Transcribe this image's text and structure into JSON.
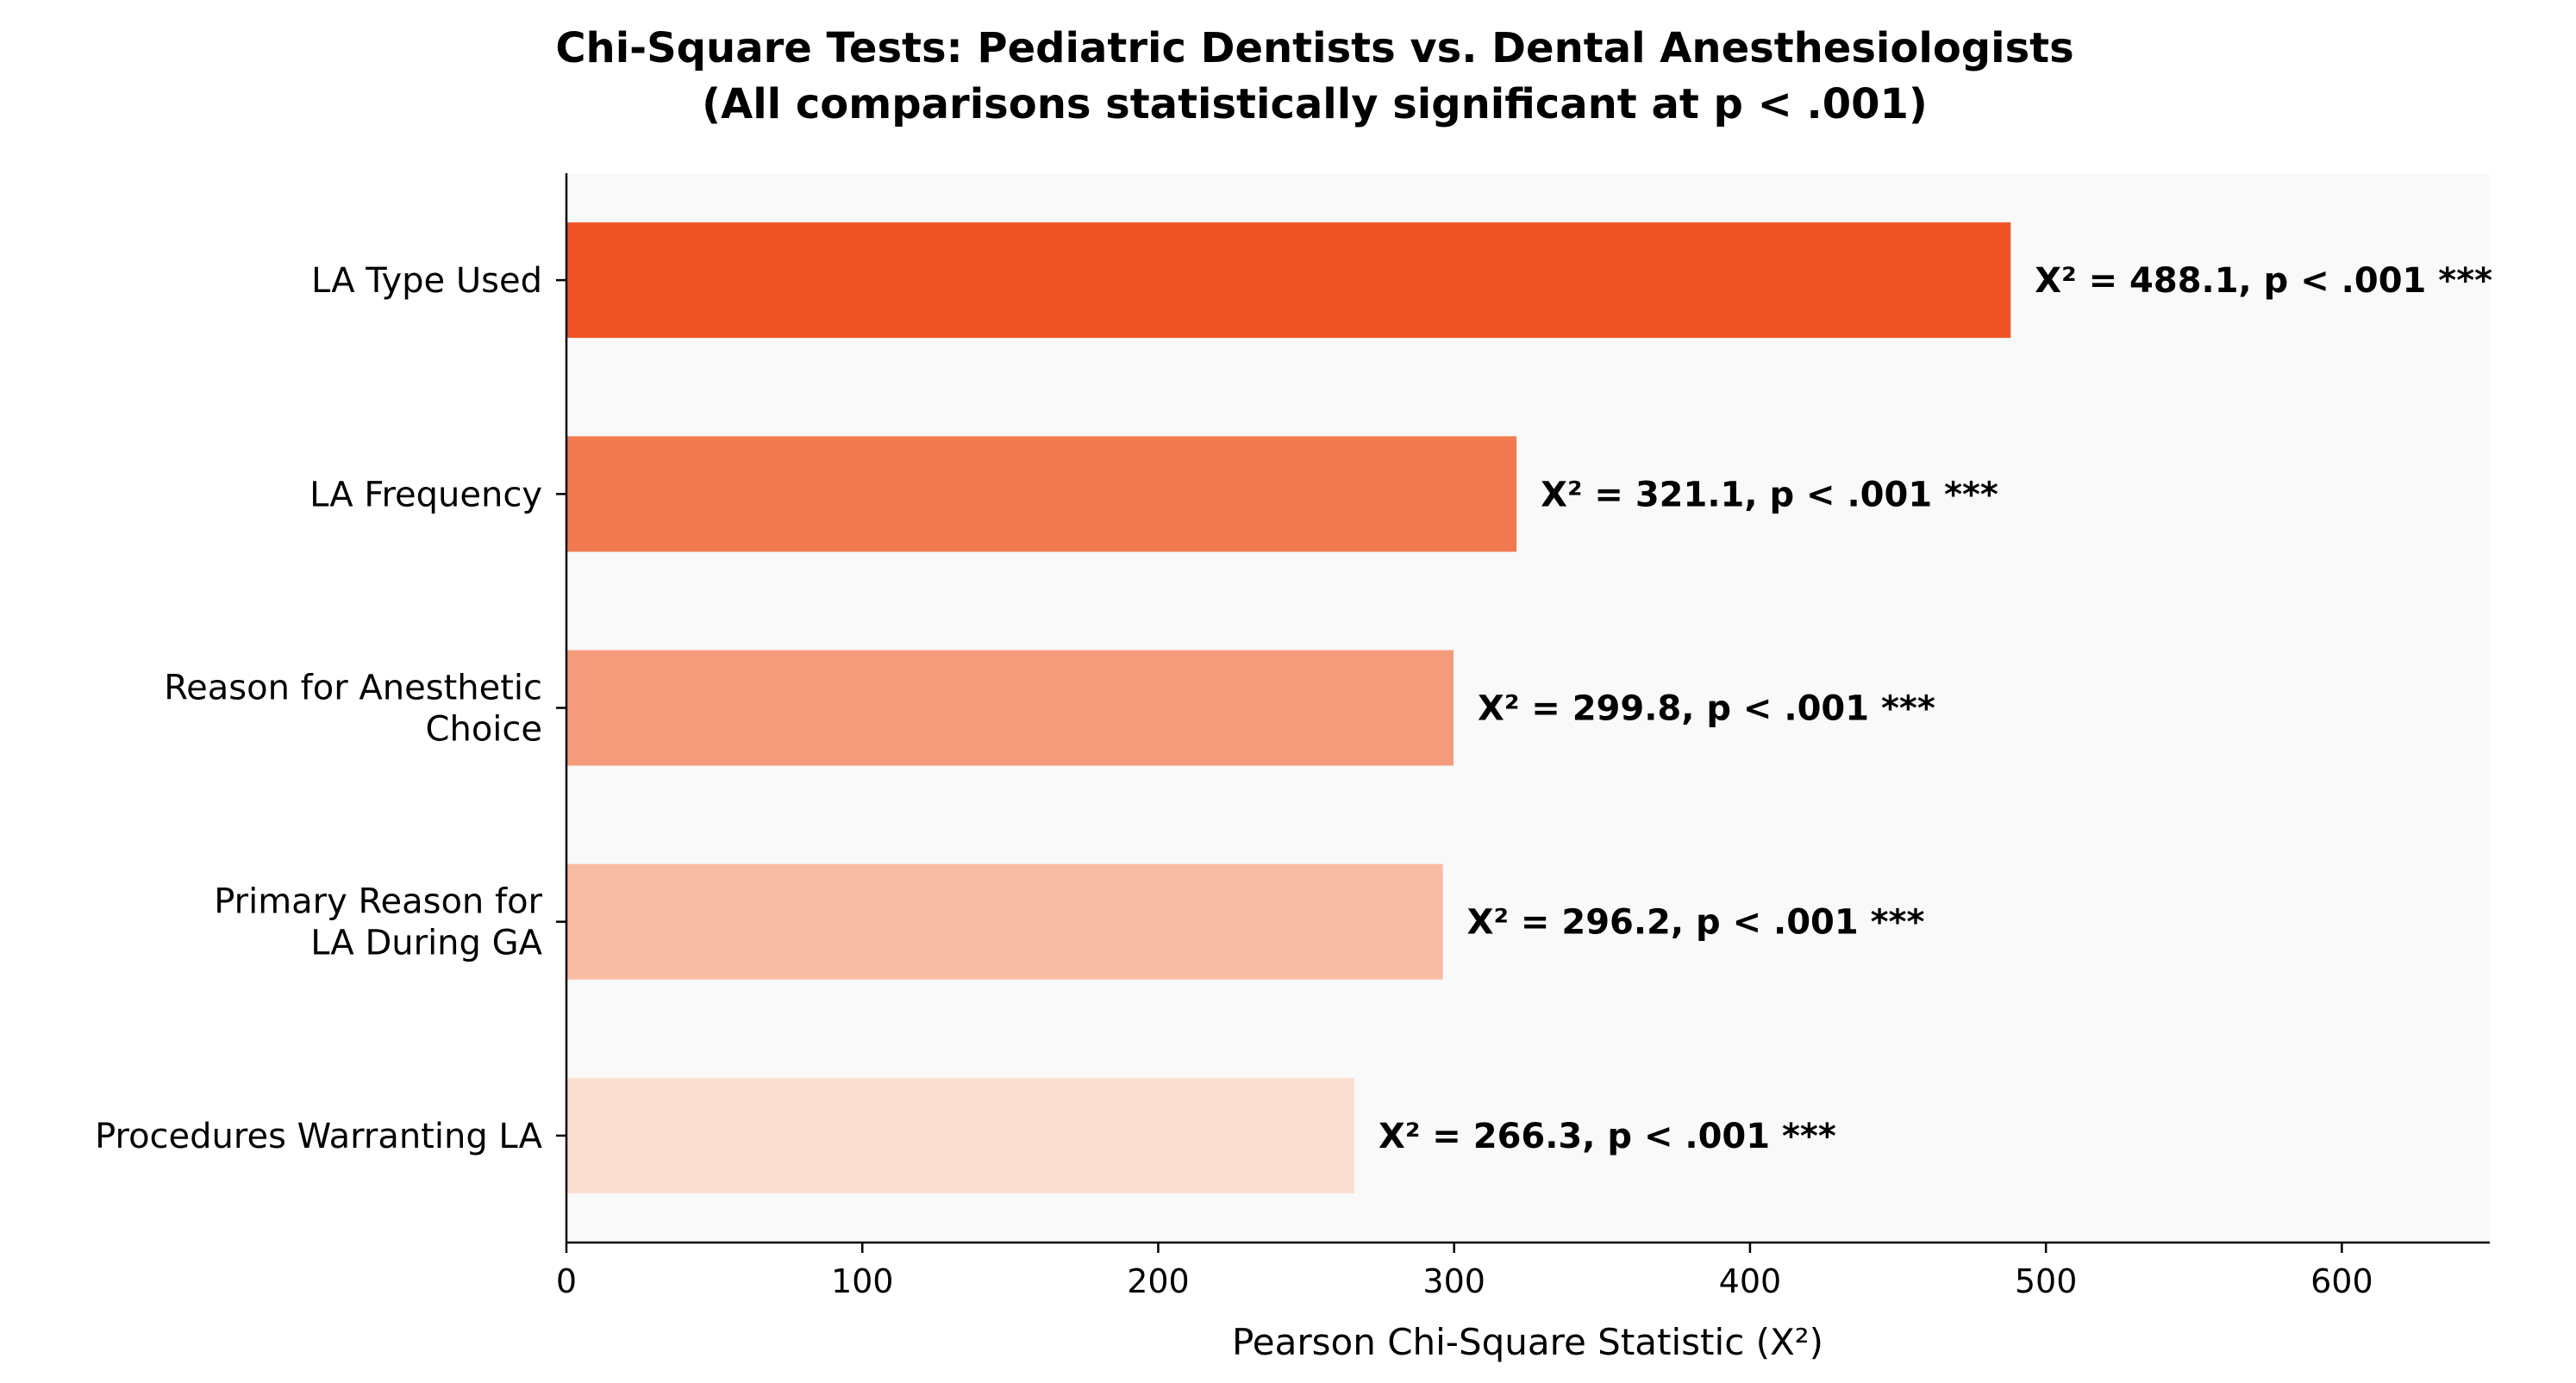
{
  "chart_data": {
    "type": "bar",
    "orientation": "horizontal",
    "title": "Chi-Square Tests: Pediatric Dentists vs. Dental Anesthesiologists",
    "subtitle": "(All comparisons statistically significant at p < .001)",
    "xlabel": "Pearson Chi-Square Statistic (X²)",
    "ylabel": "",
    "xlim": [
      0,
      650
    ],
    "xticks": [
      0,
      100,
      200,
      300,
      400,
      500,
      600
    ],
    "grid": false,
    "plot_background": "#f9f9f9",
    "categories": [
      [
        "LA Type Used"
      ],
      [
        "LA Frequency"
      ],
      [
        "Reason for Anesthetic",
        "Choice"
      ],
      [
        "Primary Reason for",
        "LA During GA"
      ],
      [
        "Procedures Warranting LA"
      ]
    ],
    "values": [
      488.1,
      321.1,
      299.8,
      296.2,
      266.3
    ],
    "colors": [
      "#ef5427",
      "#f27a51",
      "#f59b7c",
      "#f8bba4",
      "#fbdfd1"
    ],
    "data_labels": [
      "X² = 488.1, p < .001 ***",
      "X² = 321.1, p < .001 ***",
      "X² = 299.8, p < .001 ***",
      "X² = 296.2, p < .001 ***",
      "X² = 266.3, p < .001 ***"
    ]
  }
}
